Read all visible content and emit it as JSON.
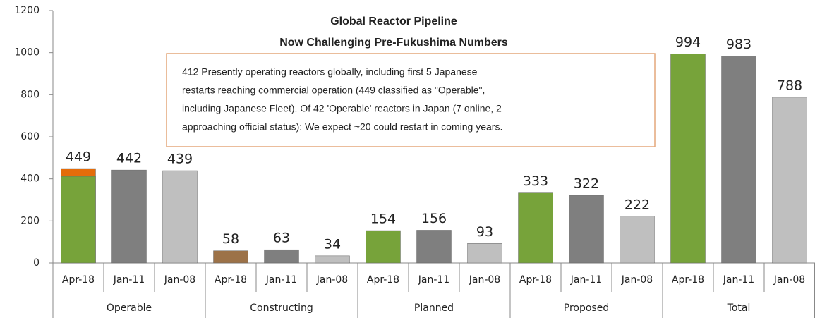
{
  "chart_data": {
    "type": "bar",
    "title": [
      "Global Reactor Pipeline",
      "Now Challenging Pre-Fukushima Numbers"
    ],
    "annotation": [
      "412 Presently operating reactors globally, including first 5 Japanese",
      "restarts reaching commercial operation (449 classified as \"Operable\",",
      "including Japanese Fleet).  Of 42 'Operable' reactors in Japan (7 online, 2",
      "approaching official status):  We expect ~20 could restart in coming years."
    ],
    "ylim": [
      0,
      1200
    ],
    "yticks": [
      0,
      200,
      400,
      600,
      800,
      1000,
      1200
    ],
    "grid": false,
    "groups": [
      {
        "name": "Operable",
        "categories": [
          "Apr-18",
          "Jan-11",
          "Jan-08"
        ],
        "values": [
          449,
          442,
          439
        ],
        "colors": [
          "#e46c0a",
          "#7f7f7f",
          "#bfbfbf"
        ],
        "operating": [
          412,
          null,
          null
        ],
        "operating_color": "#77a33a"
      },
      {
        "name": "Constructing",
        "categories": [
          "Apr-18",
          "Jan-11",
          "Jan-08"
        ],
        "values": [
          58,
          63,
          34
        ],
        "colors": [
          "#9c7248",
          "#7f7f7f",
          "#bfbfbf"
        ]
      },
      {
        "name": "Planned",
        "categories": [
          "Apr-18",
          "Jan-11",
          "Jan-08"
        ],
        "values": [
          154,
          156,
          93
        ],
        "colors": [
          "#77a33a",
          "#7f7f7f",
          "#bfbfbf"
        ]
      },
      {
        "name": "Proposed",
        "categories": [
          "Apr-18",
          "Jan-11",
          "Jan-08"
        ],
        "values": [
          333,
          322,
          222
        ],
        "colors": [
          "#77a33a",
          "#7f7f7f",
          "#bfbfbf"
        ]
      },
      {
        "name": "Total",
        "categories": [
          "Apr-18",
          "Jan-11",
          "Jan-08"
        ],
        "values": [
          994,
          983,
          788
        ],
        "colors": [
          "#77a33a",
          "#7f7f7f",
          "#bfbfbf"
        ]
      }
    ]
  }
}
